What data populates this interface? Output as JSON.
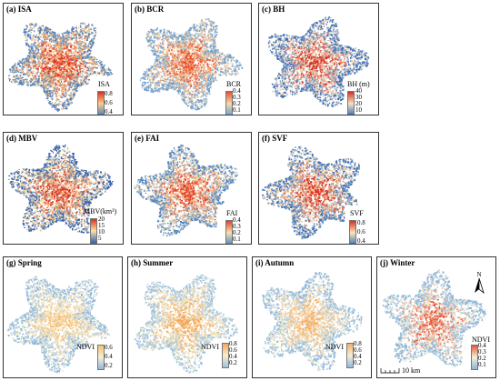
{
  "panels": [
    {
      "title": "(a) ISA",
      "cbar_label": "ISA",
      "ticks": [
        "0.8",
        "0.6",
        "0.4"
      ],
      "colors": [
        "#d7301f",
        "#fdcc8a",
        "#4a7fc1"
      ]
    },
    {
      "title": "(b) BCR",
      "cbar_label": "BCR",
      "ticks": [
        "0.4",
        "0.3",
        "0.2",
        "0.1"
      ],
      "colors": [
        "#e8512d",
        "#f6d9a8",
        "#6b9ed6"
      ]
    },
    {
      "title": "(c) BH",
      "cbar_label": "BH (m)",
      "ticks": [
        "40",
        "30",
        "20",
        "10"
      ],
      "colors": [
        "#d7301f",
        "#f4e3c3",
        "#3c6fba"
      ]
    },
    {
      "title": "(d) MBV",
      "cbar_label": "MBV(km³)",
      "ticks": [
        "20",
        "15",
        "10",
        "5"
      ],
      "colors": [
        "#d7301f",
        "#fce3a5",
        "#3562b0"
      ]
    },
    {
      "title": "(e) FAI",
      "cbar_label": "FAI",
      "ticks": [
        "0.4",
        "0.3",
        "0.2",
        "0.1"
      ],
      "colors": [
        "#e2442a",
        "#fbe2b0",
        "#4f85c7"
      ]
    },
    {
      "title": "(f) SVF",
      "cbar_label": "SVF",
      "ticks": [
        "0.8",
        "0.6",
        "0.4"
      ],
      "colors": [
        "#d7301f",
        "#fde5b8",
        "#3f73bb"
      ]
    },
    {
      "title": "(g) Spring",
      "cbar_label": "NDVI",
      "ticks": [
        "0.6",
        "0.4",
        "0.2"
      ],
      "colors": [
        "#f6c177",
        "#f3eed5",
        "#8fb8dd"
      ]
    },
    {
      "title": "(h) Summer",
      "cbar_label": "NDVI",
      "ticks": [
        "0.8",
        "0.6",
        "0.4",
        "0.2"
      ],
      "colors": [
        "#f2a65a",
        "#fbeec9",
        "#9cc2e3"
      ]
    },
    {
      "title": "(i) Autumn",
      "cbar_label": "NDVI",
      "ticks": [
        "0.8",
        "0.6",
        "0.4",
        "0.2"
      ],
      "colors": [
        "#f4b06a",
        "#f6efd3",
        "#90b9df"
      ]
    },
    {
      "title": "(j) Winter",
      "cbar_label": "NDVI",
      "ticks": [
        "0.4",
        "0.3",
        "0.2",
        "0.1"
      ],
      "colors": [
        "#e5563a",
        "#f5efd6",
        "#8bb4db"
      ]
    }
  ],
  "scale_bar": {
    "label": "10 km"
  },
  "north_arrow": {
    "label": "N"
  }
}
